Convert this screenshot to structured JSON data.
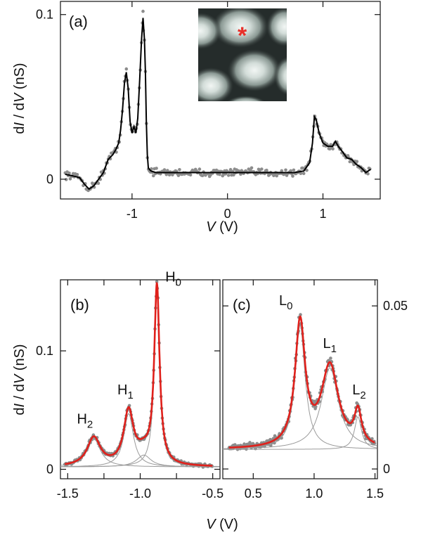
{
  "chart_data": [
    {
      "panel": "a",
      "type": "line",
      "label": "(a)",
      "xlabel": "V (V)",
      "ylabel": "dI / dV (nS)",
      "xlim": [
        -1.75,
        1.6
      ],
      "ylim": [
        -0.012,
        0.108
      ],
      "xticks": [
        -1,
        0,
        1
      ],
      "yticks": [
        0,
        0.1
      ],
      "xtick_labels": [
        "-1",
        "0",
        "1"
      ],
      "ytick_labels": [
        "0",
        "0.1"
      ],
      "grid": false,
      "series": [
        {
          "style": "measured-points",
          "color": "#8c8c8c",
          "x_range": [
            -1.7,
            1.5
          ]
        },
        {
          "style": "smoothed-line",
          "color": "#000000",
          "x": [
            -1.7,
            -1.62,
            -1.55,
            -1.5,
            -1.45,
            -1.4,
            -1.35,
            -1.3,
            -1.25,
            -1.2,
            -1.17,
            -1.14,
            -1.12,
            -1.1,
            -1.08,
            -1.06,
            -1.04,
            -1.02,
            -1.0,
            -0.98,
            -0.96,
            -0.94,
            -0.92,
            -0.9,
            -0.885,
            -0.87,
            -0.86,
            -0.85,
            -0.84,
            -0.83,
            -0.82,
            -0.8,
            -0.75,
            -0.7,
            -0.5,
            -0.3,
            0.0,
            0.3,
            0.5,
            0.7,
            0.8,
            0.86,
            0.89,
            0.91,
            0.93,
            0.96,
            1.0,
            1.05,
            1.1,
            1.13,
            1.16,
            1.2,
            1.25,
            1.3,
            1.35,
            1.4,
            1.45,
            1.5
          ],
          "y": [
            0.003,
            0.002,
            0.001,
            -0.003,
            -0.006,
            -0.004,
            0.0,
            0.004,
            0.012,
            0.015,
            0.018,
            0.022,
            0.03,
            0.042,
            0.058,
            0.065,
            0.055,
            0.035,
            0.028,
            0.032,
            0.028,
            0.037,
            0.06,
            0.085,
            0.098,
            0.085,
            0.065,
            0.035,
            0.015,
            0.007,
            0.006,
            0.005,
            0.004,
            0.004,
            0.004,
            0.004,
            0.004,
            0.004,
            0.004,
            0.004,
            0.005,
            0.01,
            0.022,
            0.038,
            0.036,
            0.028,
            0.022,
            0.02,
            0.02,
            0.023,
            0.02,
            0.017,
            0.013,
            0.012,
            0.009,
            0.007,
            0.004,
            0.006
          ]
        }
      ],
      "inset": {
        "type": "topography-image",
        "colormap": [
          "#000000",
          "#ffffff"
        ],
        "marker": "*",
        "marker_color": "#e8302a"
      }
    },
    {
      "panel": "b",
      "type": "line",
      "label": "(b)",
      "xlabel": "V (V)",
      "ylabel": "dI / dV (nS)",
      "xlim": [
        -1.55,
        -0.45
      ],
      "ylim": [
        -0.008,
        0.16
      ],
      "xticks": [
        -1.5,
        -1.25,
        -1.0,
        -0.75,
        -0.5
      ],
      "xtick_labels": [
        "-1.5",
        "",
        "-1.0",
        "",
        "-0.5"
      ],
      "yticks": [
        0,
        0.1
      ],
      "ytick_labels": [
        "0",
        "0.1"
      ],
      "grid": false,
      "peaks": [
        {
          "name": "H",
          "sub": "2",
          "center": -1.32,
          "height": 0.024,
          "width": 0.055
        },
        {
          "name": "H",
          "sub": "1",
          "center": -1.08,
          "height": 0.045,
          "width": 0.04
        },
        {
          "name": "H",
          "sub": "0",
          "center": -0.885,
          "height": 0.15,
          "width": 0.022
        }
      ],
      "extra_shoulder": {
        "center": -0.975,
        "height": 0.01,
        "width": 0.06
      },
      "baseline": 0.002,
      "series": [
        {
          "style": "measured-points",
          "color": "#8c8c8c",
          "x_range": [
            -1.52,
            -0.5
          ]
        },
        {
          "style": "component-lorentzians",
          "color": "#9a9a9a"
        },
        {
          "style": "fit-line",
          "color": "#e0201b"
        }
      ]
    },
    {
      "panel": "c",
      "type": "line",
      "label": "(c)",
      "xlabel": "V (V)",
      "ylabel": "",
      "xlim": [
        0.25,
        1.52
      ],
      "ylim": [
        -0.003,
        0.058
      ],
      "xticks": [
        0.5,
        1.0,
        1.5
      ],
      "xtick_labels": [
        "0.5",
        "1.0",
        "1.5"
      ],
      "yticks": [
        0,
        0.05
      ],
      "ytick_labels": [
        "0",
        "0.05"
      ],
      "yaxis_position": "right",
      "grid": false,
      "peaks": [
        {
          "name": "L",
          "sub": "0",
          "center": 0.885,
          "height": 0.038,
          "width": 0.05
        },
        {
          "name": "L",
          "sub": "1",
          "center": 1.13,
          "height": 0.025,
          "width": 0.085
        },
        {
          "name": "L",
          "sub": "2",
          "center": 1.36,
          "height": 0.01,
          "width": 0.035
        }
      ],
      "baseline": 0.006,
      "series": [
        {
          "style": "measured-points",
          "color": "#8c8c8c",
          "x_range": [
            0.3,
            1.5
          ]
        },
        {
          "style": "component-lorentzians",
          "color": "#9a9a9a"
        },
        {
          "style": "fit-line",
          "color": "#e0201b"
        }
      ]
    }
  ],
  "shared_xlabel": "V (V)"
}
